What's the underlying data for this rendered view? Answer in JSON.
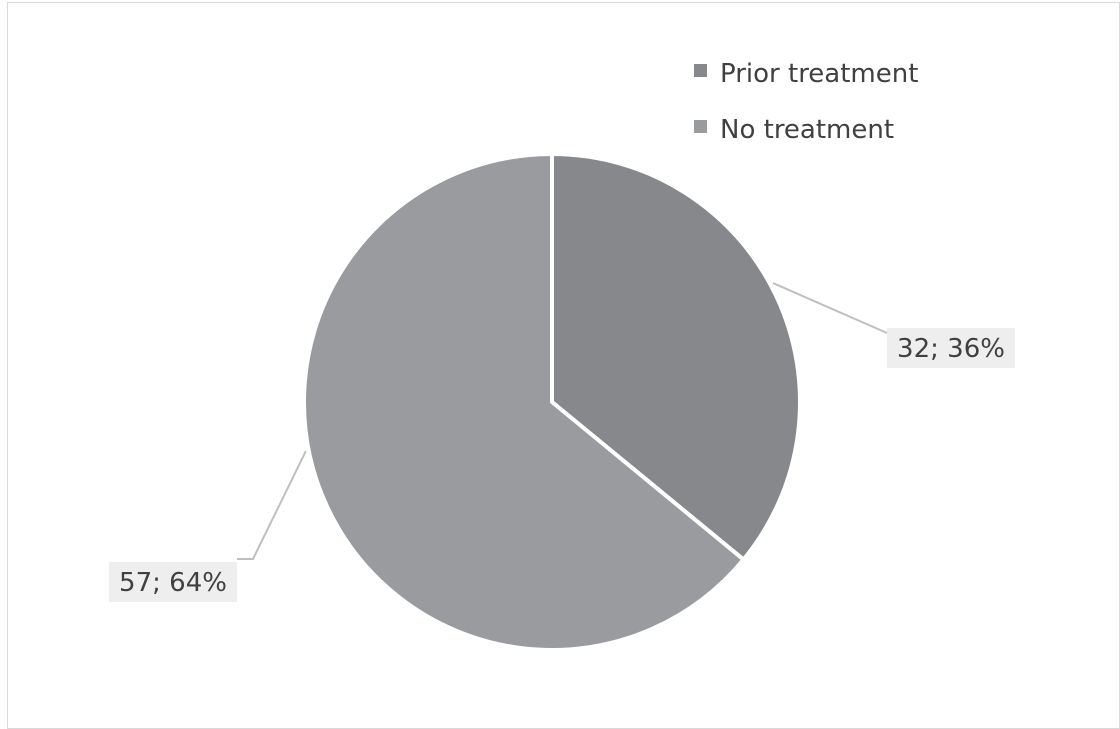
{
  "chart_data": {
    "type": "pie",
    "title": "",
    "series": [
      {
        "name": "Prior treatment",
        "value": 32,
        "percent": 36,
        "label": "32; 36%",
        "color": "#87888b"
      },
      {
        "name": "No treatment",
        "value": 57,
        "percent": 64,
        "label": "57; 64%",
        "color": "#9a9b9e"
      }
    ],
    "start_angle_deg": 0,
    "direction": "clockwise",
    "legend_position": "top-right",
    "label_background": "#eeeeee",
    "leader_line_color": "#bfbfbf",
    "border_color": "#d9d9d9"
  }
}
